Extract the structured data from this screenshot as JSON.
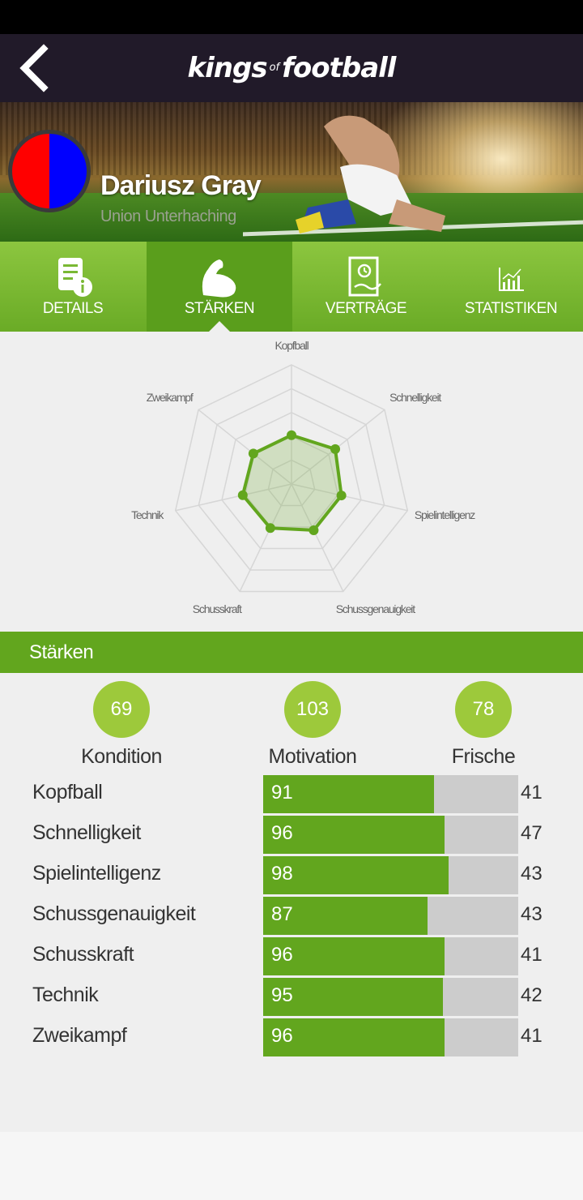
{
  "app": {
    "logo_main_1": "kings",
    "logo_of": "of",
    "logo_main_2": "football"
  },
  "player": {
    "name": "Dariusz Gray",
    "club": "Union Unterhaching",
    "club_colors": [
      "#ff0000",
      "#0000ff"
    ]
  },
  "tabs": [
    {
      "label": "DETAILS",
      "icon": "document-info-icon",
      "active": false
    },
    {
      "label": "STÄRKEN",
      "icon": "flexed-arm-icon",
      "active": true
    },
    {
      "label": "VERTRÄGE",
      "icon": "contract-icon",
      "active": false
    },
    {
      "label": "STATISTIKEN",
      "icon": "bar-chart-icon",
      "active": false
    }
  ],
  "radar": {
    "axes": [
      "Kopfball",
      "Schnelligkeit",
      "Spielintelligenz",
      "Schussgenauigkeit",
      "Schusskraft",
      "Technik",
      "Zweikampf"
    ],
    "values": [
      41,
      47,
      43,
      43,
      41,
      42,
      41
    ],
    "max": 100,
    "color": "#62a61e"
  },
  "section": {
    "title": "Stärken"
  },
  "summary": [
    {
      "value": "69",
      "label": "Kondition"
    },
    {
      "value": "103",
      "label": "Motivation"
    },
    {
      "value": "78",
      "label": "Frische"
    }
  ],
  "attributes": [
    {
      "name": "Kopfball",
      "value": 91,
      "right": 41,
      "fill": 0.67
    },
    {
      "name": "Schnelligkeit",
      "value": 96,
      "right": 47,
      "fill": 0.71
    },
    {
      "name": "Spielintelligenz",
      "value": 98,
      "right": 43,
      "fill": 0.727
    },
    {
      "name": "Schussgenauigkeit",
      "value": 87,
      "right": 43,
      "fill": 0.645
    },
    {
      "name": "Schusskraft",
      "value": 96,
      "right": 41,
      "fill": 0.71
    },
    {
      "name": "Technik",
      "value": 95,
      "right": 42,
      "fill": 0.705
    },
    {
      "name": "Zweikampf",
      "value": 96,
      "right": 41,
      "fill": 0.71
    }
  ]
}
